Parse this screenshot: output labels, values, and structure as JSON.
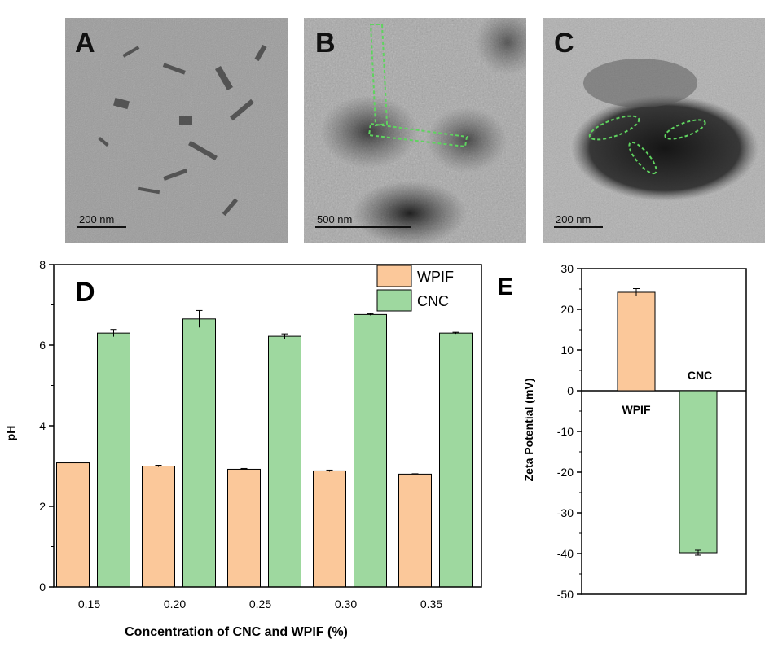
{
  "images": [
    {
      "letter": "A",
      "scale": "200 nm"
    },
    {
      "letter": "B",
      "scale": "500 nm"
    },
    {
      "letter": "C",
      "scale": "200 nm"
    }
  ],
  "colors": {
    "wpif": "#fbc89a",
    "cnc": "#9ed89f",
    "axis": "#000000",
    "annotation": "#5fd35f"
  },
  "chart_data": [
    {
      "panel": "D",
      "type": "bar",
      "xlabel": "Concentration of CNC and WPIF (%)",
      "ylabel": "pH",
      "ylim": [
        0,
        8
      ],
      "yticks": [
        "0",
        "2",
        "4",
        "6",
        "8"
      ],
      "categories": [
        "0.15",
        "0.20",
        "0.25",
        "0.30",
        "0.35"
      ],
      "legend_position": "top-right",
      "series": [
        {
          "name": "WPIF",
          "color": "#fbc89a",
          "values": [
            3.08,
            3.0,
            2.92,
            2.88,
            2.8
          ],
          "errors": [
            0.02,
            0.02,
            0.02,
            0.02,
            0.01
          ]
        },
        {
          "name": "CNC",
          "color": "#9ed89f",
          "values": [
            6.3,
            6.65,
            6.22,
            6.76,
            6.3
          ],
          "errors": [
            0.09,
            0.21,
            0.06,
            0.02,
            0.02
          ]
        }
      ]
    },
    {
      "panel": "E",
      "type": "bar",
      "ylabel": "Zeta Potential (mV)",
      "ylim": [
        -50,
        30
      ],
      "yticks": [
        "30",
        "20",
        "10",
        "0",
        "-10",
        "-20",
        "-30",
        "-40",
        "-50"
      ],
      "categories": [
        "WPIF",
        "CNC"
      ],
      "values": [
        24.2,
        -39.8
      ],
      "errors": [
        0.9,
        0.6
      ],
      "colors": [
        "#fbc89a",
        "#9ed89f"
      ]
    }
  ]
}
